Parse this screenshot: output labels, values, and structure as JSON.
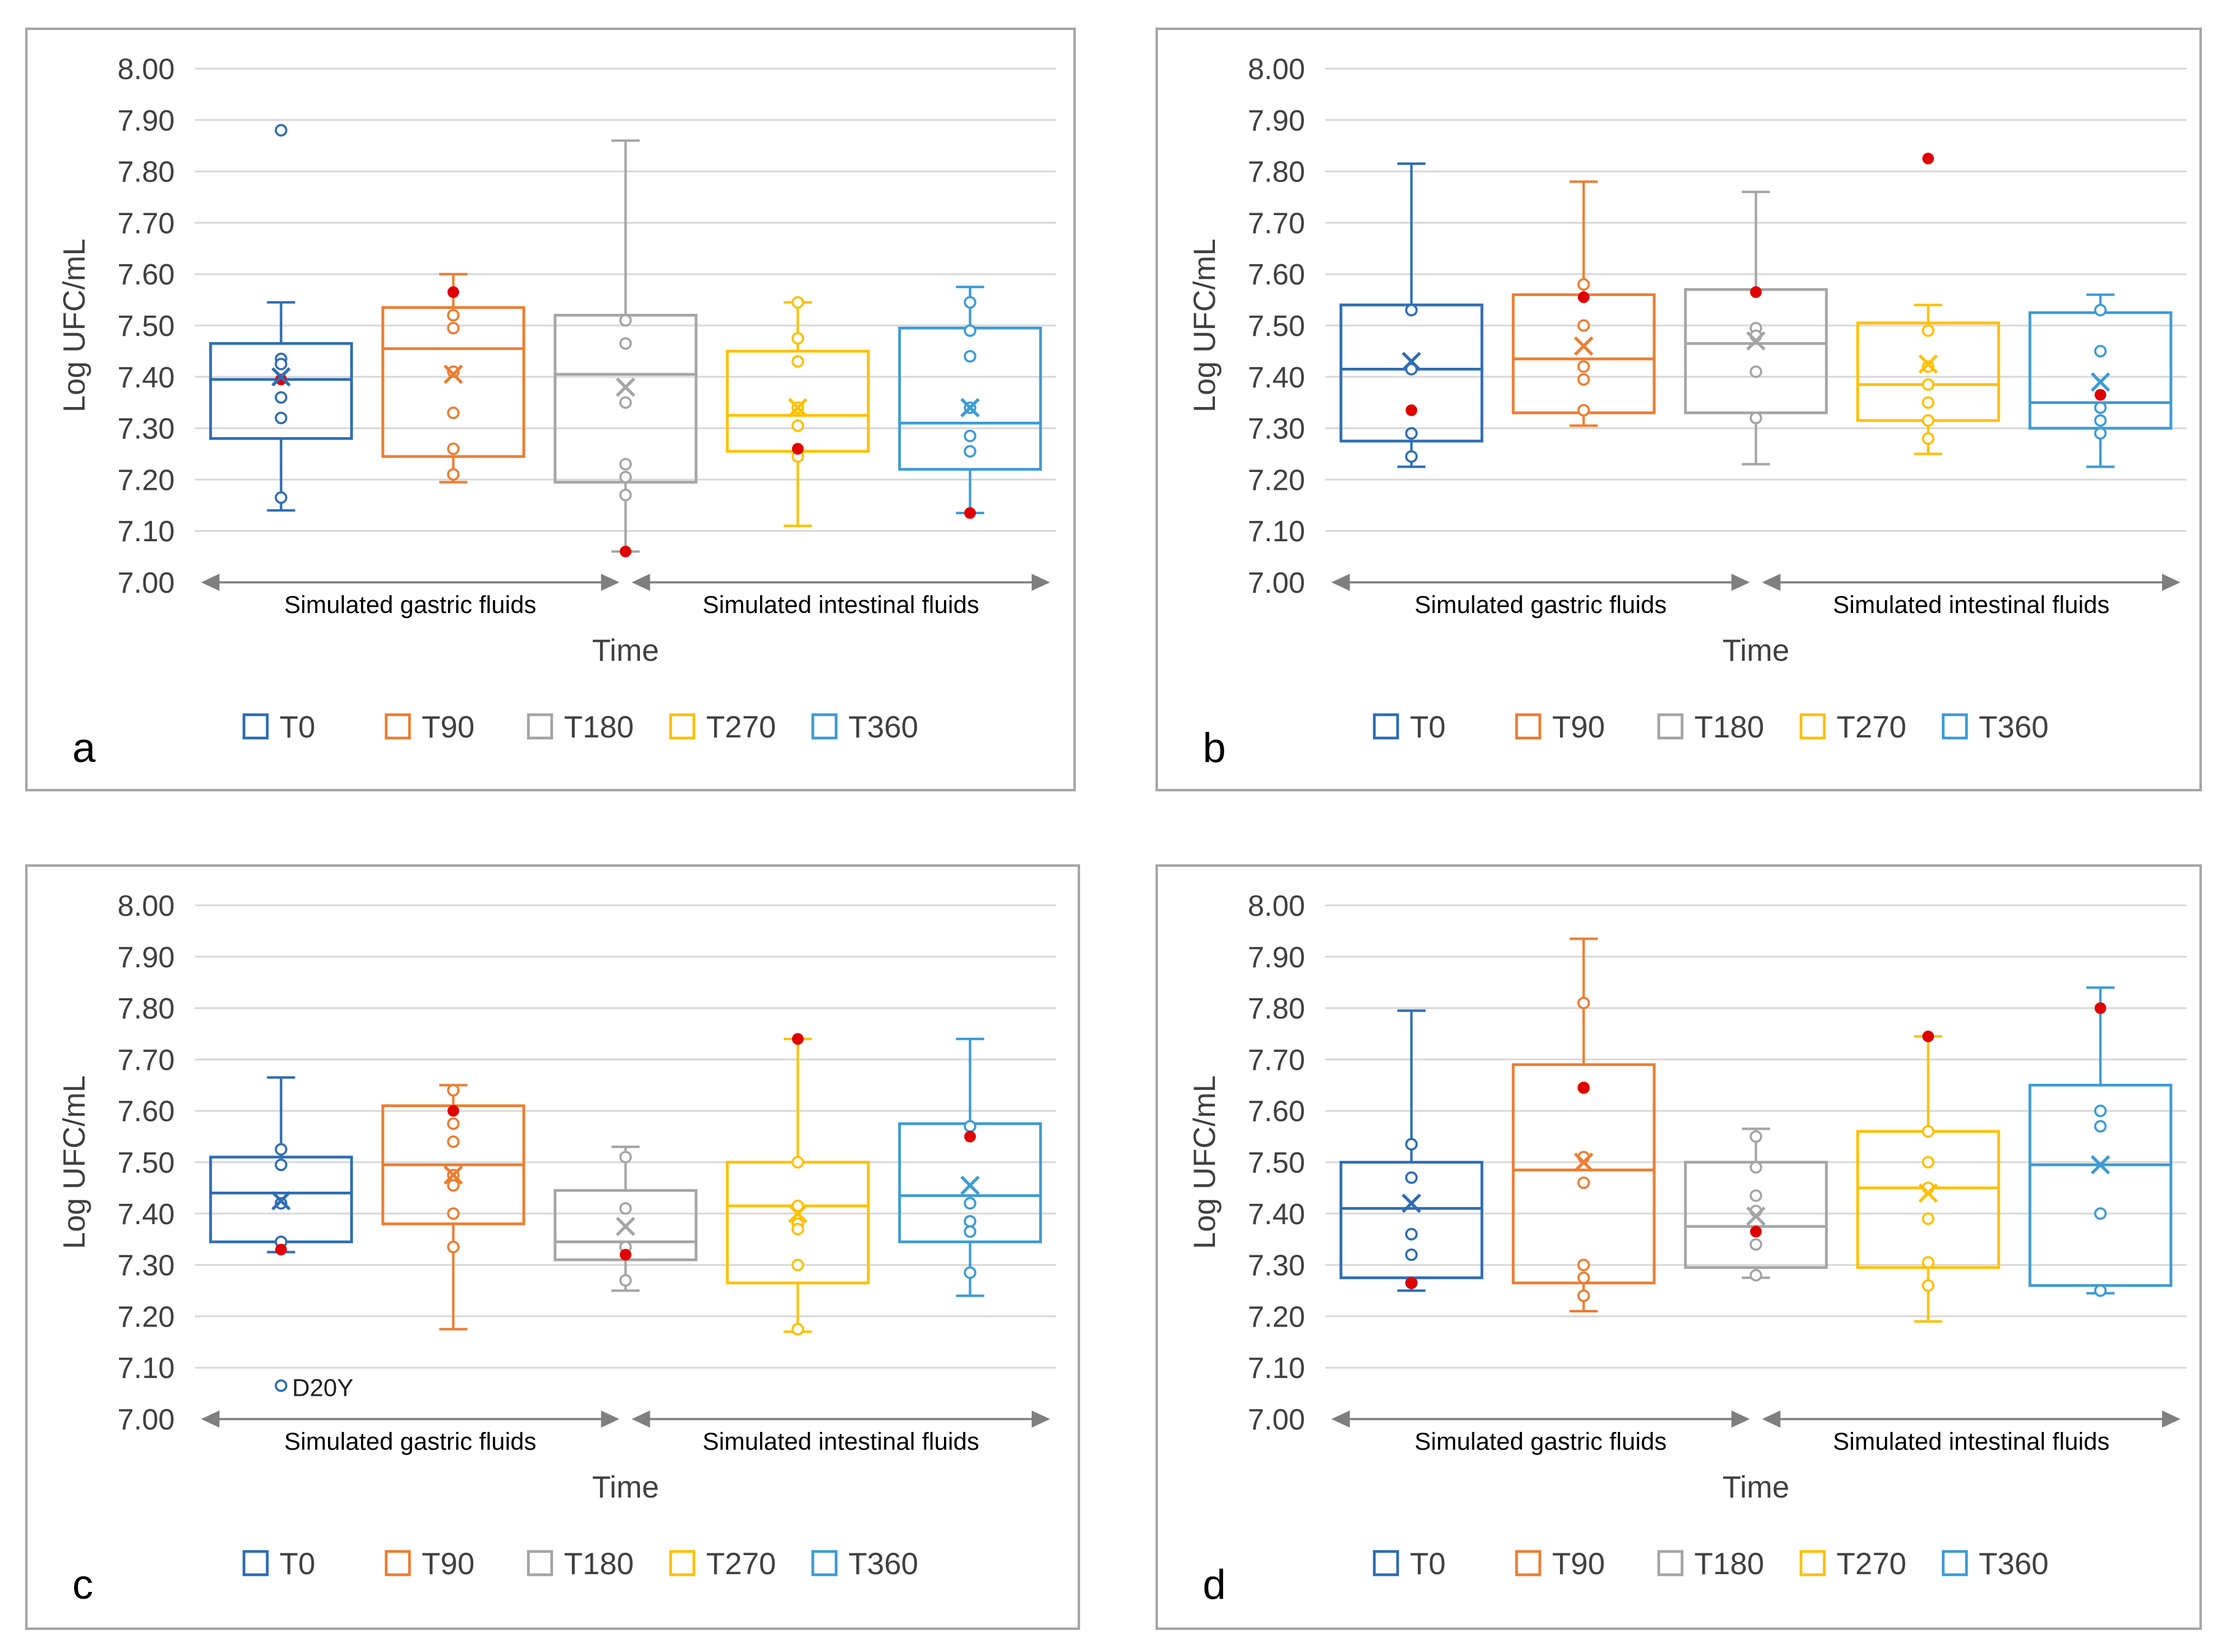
{
  "colors": {
    "T0": "#2E6DB4",
    "T90": "#ED7D31",
    "T180": "#A5A5A5",
    "T270": "#FFC000",
    "T360": "#3D9BD6",
    "highlight": "#E00000",
    "grid": "#D9D9D9",
    "axis_arrow": "#7F7F7F",
    "frame": "#A6A6A6",
    "text": "#404040"
  },
  "icons": {
    "legend_marker": "square-outline-icon",
    "mean_marker": "x-mark-icon",
    "point_marker": "circle-outline-icon"
  },
  "chart_data": [
    {
      "panel_label": "a",
      "type": "box",
      "ylabel": "Log UFC/mL",
      "xlabel": "Time",
      "ylim": [
        7.0,
        8.0
      ],
      "y_ticks": [
        "7.00",
        "7.10",
        "7.20",
        "7.30",
        "7.40",
        "7.50",
        "7.60",
        "7.70",
        "7.80",
        "7.90",
        "8.00"
      ],
      "groups": [
        "Simulated gastric fluids",
        "Simulated intestinal fluids"
      ],
      "legend": [
        "T0",
        "T90",
        "T180",
        "T270",
        "T360"
      ],
      "series": [
        {
          "name": "T0",
          "min": 7.14,
          "q1": 7.28,
          "median": 7.395,
          "q3": 7.465,
          "max": 7.545,
          "mean": 7.4,
          "points": [
            7.88,
            7.435,
            7.425,
            7.36,
            7.32,
            7.165
          ],
          "highlight": [
            7.395
          ]
        },
        {
          "name": "T90",
          "min": 7.195,
          "q1": 7.245,
          "median": 7.455,
          "q3": 7.535,
          "max": 7.6,
          "mean": 7.405,
          "points": [
            7.52,
            7.495,
            7.41,
            7.33,
            7.26,
            7.21
          ],
          "highlight": [
            7.565
          ]
        },
        {
          "name": "T180",
          "min": 7.06,
          "q1": 7.195,
          "median": 7.405,
          "q3": 7.52,
          "max": 7.86,
          "mean": 7.38,
          "points": [
            7.51,
            7.465,
            7.35,
            7.23,
            7.205,
            7.17
          ],
          "highlight": [
            7.06
          ]
        },
        {
          "name": "T270",
          "min": 7.11,
          "q1": 7.255,
          "median": 7.325,
          "q3": 7.45,
          "max": 7.545,
          "mean": 7.34,
          "points": [
            7.545,
            7.475,
            7.43,
            7.34,
            7.305,
            7.245
          ],
          "highlight": [
            7.26
          ]
        },
        {
          "name": "T360",
          "min": 7.135,
          "q1": 7.22,
          "median": 7.31,
          "q3": 7.495,
          "max": 7.575,
          "mean": 7.34,
          "points": [
            7.545,
            7.49,
            7.44,
            7.34,
            7.285,
            7.255
          ],
          "highlight": [
            7.135
          ]
        }
      ]
    },
    {
      "panel_label": "b",
      "type": "box",
      "ylabel": "Log UFC/mL",
      "xlabel": "Time",
      "ylim": [
        7.0,
        8.0
      ],
      "y_ticks": [
        "7.00",
        "7.10",
        "7.20",
        "7.30",
        "7.40",
        "7.50",
        "7.60",
        "7.70",
        "7.80",
        "7.90",
        "8.00"
      ],
      "groups": [
        "Simulated gastric fluids",
        "Simulated intestinal fluids"
      ],
      "legend": [
        "T0",
        "T90",
        "T180",
        "T270",
        "T360"
      ],
      "series": [
        {
          "name": "T0",
          "min": 7.225,
          "q1": 7.275,
          "median": 7.415,
          "q3": 7.54,
          "max": 7.815,
          "mean": 7.43,
          "points": [
            7.53,
            7.415,
            7.29,
            7.245
          ],
          "highlight": [
            7.335
          ]
        },
        {
          "name": "T90",
          "min": 7.305,
          "q1": 7.33,
          "median": 7.435,
          "q3": 7.56,
          "max": 7.78,
          "mean": 7.46,
          "points": [
            7.58,
            7.5,
            7.42,
            7.395,
            7.335
          ],
          "highlight": [
            7.555
          ]
        },
        {
          "name": "T180",
          "min": 7.23,
          "q1": 7.33,
          "median": 7.465,
          "q3": 7.57,
          "max": 7.76,
          "mean": 7.47,
          "points": [
            7.495,
            7.48,
            7.41,
            7.32
          ],
          "highlight": [
            7.565
          ]
        },
        {
          "name": "T270",
          "min": 7.25,
          "q1": 7.315,
          "median": 7.385,
          "q3": 7.505,
          "max": 7.54,
          "mean": 7.425,
          "points": [
            7.49,
            7.42,
            7.385,
            7.35,
            7.315,
            7.28
          ],
          "highlight": [
            7.825
          ]
        },
        {
          "name": "T360",
          "min": 7.225,
          "q1": 7.3,
          "median": 7.35,
          "q3": 7.525,
          "max": 7.56,
          "mean": 7.39,
          "points": [
            7.53,
            7.45,
            7.34,
            7.315,
            7.29
          ],
          "highlight": [
            7.365
          ]
        }
      ]
    },
    {
      "panel_label": "c",
      "type": "box",
      "ylabel": "Log UFC/mL",
      "xlabel": "Time",
      "ylim": [
        7.0,
        8.0
      ],
      "y_ticks": [
        "7.00",
        "7.10",
        "7.20",
        "7.30",
        "7.40",
        "7.50",
        "7.60",
        "7.70",
        "7.80",
        "7.90",
        "8.00"
      ],
      "groups": [
        "Simulated gastric fluids",
        "Simulated intestinal fluids"
      ],
      "legend": [
        "T0",
        "T90",
        "T180",
        "T270",
        "T360"
      ],
      "annotation": {
        "series": "T0",
        "value": 7.065,
        "text": "D20Y"
      },
      "series": [
        {
          "name": "T0",
          "min": 7.325,
          "q1": 7.345,
          "median": 7.44,
          "q3": 7.51,
          "max": 7.665,
          "mean": 7.425,
          "points": [
            7.525,
            7.495,
            7.42,
            7.345,
            7.065
          ],
          "highlight": [
            7.33
          ]
        },
        {
          "name": "T90",
          "min": 7.175,
          "q1": 7.38,
          "median": 7.495,
          "q3": 7.61,
          "max": 7.65,
          "mean": 7.475,
          "points": [
            7.64,
            7.575,
            7.54,
            7.475,
            7.455,
            7.4,
            7.335
          ],
          "highlight": [
            7.6
          ]
        },
        {
          "name": "T180",
          "min": 7.25,
          "q1": 7.31,
          "median": 7.345,
          "q3": 7.445,
          "max": 7.53,
          "mean": 7.375,
          "points": [
            7.51,
            7.41,
            7.335,
            7.27
          ],
          "highlight": [
            7.32
          ]
        },
        {
          "name": "T270",
          "min": 7.17,
          "q1": 7.265,
          "median": 7.415,
          "q3": 7.5,
          "max": 7.74,
          "mean": 7.4,
          "points": [
            7.5,
            7.415,
            7.38,
            7.37,
            7.3,
            7.175
          ],
          "highlight": [
            7.74
          ]
        },
        {
          "name": "T360",
          "min": 7.24,
          "q1": 7.345,
          "median": 7.435,
          "q3": 7.575,
          "max": 7.74,
          "mean": 7.455,
          "points": [
            7.57,
            7.42,
            7.385,
            7.365,
            7.285
          ],
          "highlight": [
            7.55
          ]
        }
      ]
    },
    {
      "panel_label": "d",
      "type": "box",
      "ylabel": "Log UFC/mL",
      "xlabel": "Time",
      "ylim": [
        7.0,
        8.0
      ],
      "y_ticks": [
        "7.00",
        "7.10",
        "7.20",
        "7.30",
        "7.40",
        "7.50",
        "7.60",
        "7.70",
        "7.80",
        "7.90",
        "8.00"
      ],
      "groups": [
        "Simulated gastric fluids",
        "Simulated intestinal fluids"
      ],
      "legend": [
        "T0",
        "T90",
        "T180",
        "T270",
        "T360"
      ],
      "series": [
        {
          "name": "T0",
          "min": 7.25,
          "q1": 7.275,
          "median": 7.41,
          "q3": 7.5,
          "max": 7.795,
          "mean": 7.42,
          "points": [
            7.535,
            7.47,
            7.36,
            7.32,
            7.265
          ],
          "highlight": [
            7.265
          ]
        },
        {
          "name": "T90",
          "min": 7.21,
          "q1": 7.265,
          "median": 7.485,
          "q3": 7.69,
          "max": 7.935,
          "mean": 7.5,
          "points": [
            7.81,
            7.645,
            7.51,
            7.46,
            7.3,
            7.275,
            7.24
          ],
          "highlight": [
            7.645
          ]
        },
        {
          "name": "T180",
          "min": 7.275,
          "q1": 7.295,
          "median": 7.375,
          "q3": 7.5,
          "max": 7.565,
          "mean": 7.395,
          "points": [
            7.55,
            7.49,
            7.435,
            7.405,
            7.34,
            7.28
          ],
          "highlight": [
            7.365
          ]
        },
        {
          "name": "T270",
          "min": 7.19,
          "q1": 7.295,
          "median": 7.45,
          "q3": 7.56,
          "max": 7.745,
          "mean": 7.44,
          "points": [
            7.56,
            7.5,
            7.45,
            7.39,
            7.305,
            7.26
          ],
          "highlight": [
            7.745
          ]
        },
        {
          "name": "T360",
          "min": 7.245,
          "q1": 7.26,
          "median": 7.495,
          "q3": 7.65,
          "max": 7.84,
          "mean": 7.495,
          "points": [
            7.6,
            7.57,
            7.4,
            7.25
          ],
          "highlight": [
            7.8
          ]
        }
      ]
    }
  ]
}
